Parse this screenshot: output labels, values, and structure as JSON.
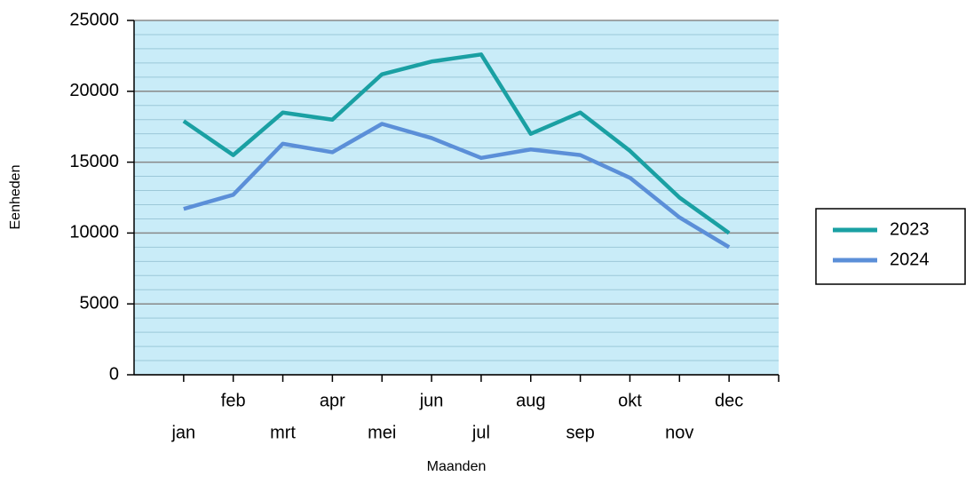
{
  "chart_data": {
    "type": "line",
    "x_label": "Maanden",
    "y_label": "Eenheden",
    "categories": [
      "jan",
      "feb",
      "mrt",
      "apr",
      "mei",
      "jun",
      "jul",
      "aug",
      "sep",
      "okt",
      "nov",
      "dec"
    ],
    "series": [
      {
        "name": "2023",
        "color": "#1aa0a3",
        "values": [
          17900,
          15500,
          18500,
          18000,
          21200,
          22100,
          22600,
          17000,
          18500,
          15800,
          12500,
          10000
        ]
      },
      {
        "name": "2024",
        "color": "#5b8fd8",
        "values": [
          11700,
          12700,
          16300,
          15700,
          17700,
          16700,
          15300,
          15900,
          15500,
          13900,
          11100,
          9000
        ]
      }
    ],
    "ylim": [
      0,
      25000
    ],
    "yticks": [
      0,
      5000,
      10000,
      15000,
      20000,
      25000
    ],
    "grid": true,
    "legend": "right"
  }
}
